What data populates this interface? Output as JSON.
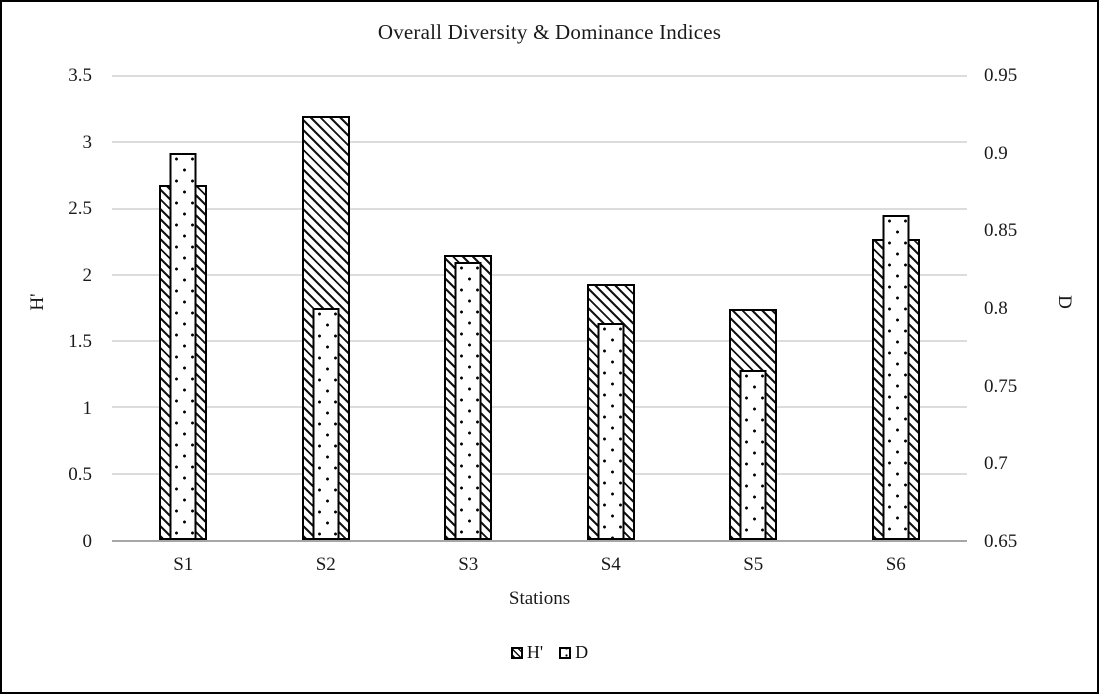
{
  "chart_data": {
    "type": "bar",
    "title": "Overall Diversity & Dominance Indices",
    "xlabel": "Stations",
    "ylabel_left": "H'",
    "ylabel_right": "D",
    "categories": [
      "S1",
      "S2",
      "S3",
      "S4",
      "S5",
      "S6"
    ],
    "series": [
      {
        "name": "H'",
        "axis": "left",
        "pattern": "diagonal-hatch",
        "values": [
          2.68,
          3.2,
          2.15,
          1.93,
          1.74,
          2.27
        ]
      },
      {
        "name": "D",
        "axis": "right",
        "pattern": "sparse-dots",
        "values": [
          0.9,
          0.8,
          0.83,
          0.79,
          0.76,
          0.86
        ]
      }
    ],
    "axis_left": {
      "min": 0,
      "max": 3.5,
      "tick_step": 0.5,
      "ticks": [
        "0",
        "0.5",
        "1",
        "1.5",
        "2",
        "2.5",
        "3",
        "3.5"
      ]
    },
    "axis_right": {
      "min": 0.65,
      "max": 0.95,
      "tick_step": 0.05,
      "ticks": [
        "0.65",
        "0.7",
        "0.75",
        "0.8",
        "0.85",
        "0.9",
        "0.95"
      ]
    },
    "legend": {
      "position": "bottom-center",
      "entries": [
        "H'",
        "D"
      ]
    },
    "grid": "horizontal",
    "colors": {
      "background": "#ffffff",
      "frame_border": "#000000",
      "bar_border": "#000000",
      "gridline": "#dcdcdc",
      "axis_line": "#a6a6a6",
      "text": "#1a1a1a"
    }
  }
}
